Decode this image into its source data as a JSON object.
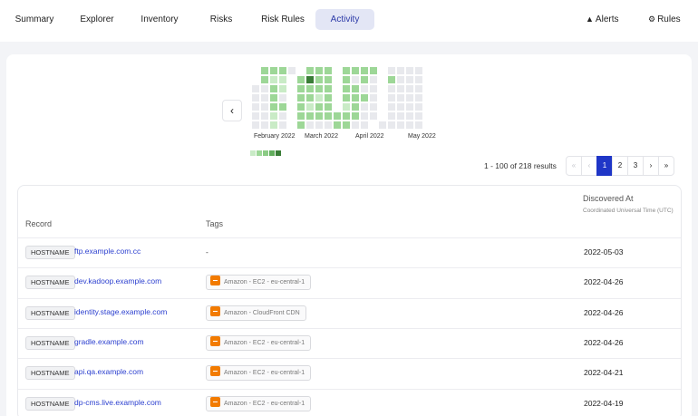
{
  "nav": {
    "tabs": [
      "Summary",
      "Explorer",
      "Inventory",
      "Risks",
      "Risk Rules",
      "Activity"
    ],
    "active_tab": "Activity",
    "alerts_label": "Alerts",
    "rules_label": "Rules"
  },
  "heatmap": {
    "months": [
      "February 2022",
      "March 2022",
      "April 2022",
      "May 2022"
    ],
    "levels": [
      "#e8e9ed",
      "#c9ebc6",
      "#9dd797",
      "#62ad5d",
      "#3a7d37"
    ],
    "legend_colors": [
      "#c9ebc6",
      "#9dd797",
      "#8bcb85",
      "#62ad5d",
      "#3a7d37"
    ],
    "prev_icon": "chevron-left-icon",
    "weeks": [
      [
        null,
        null,
        0,
        0,
        0,
        0,
        0
      ],
      [
        2,
        2,
        0,
        0,
        0,
        0,
        0
      ],
      [
        2,
        1,
        2,
        2,
        2,
        1,
        1
      ],
      [
        2,
        1,
        1,
        0,
        2,
        0,
        0
      ],
      [
        0,
        null,
        null,
        null,
        null,
        null,
        null
      ],
      [
        null,
        2,
        2,
        2,
        2,
        2,
        2
      ],
      [
        2,
        4,
        2,
        2,
        1,
        2,
        0
      ],
      [
        2,
        2,
        2,
        1,
        2,
        2,
        0
      ],
      [
        2,
        2,
        2,
        2,
        2,
        2,
        0
      ],
      [
        null,
        null,
        null,
        null,
        null,
        2,
        2
      ],
      [
        2,
        2,
        2,
        2,
        1,
        2,
        2
      ],
      [
        2,
        0,
        2,
        2,
        2,
        2,
        0
      ],
      [
        2,
        2,
        0,
        2,
        0,
        0,
        0
      ],
      [
        2,
        0,
        0,
        0,
        0,
        0,
        null
      ],
      [
        null,
        null,
        null,
        null,
        null,
        null,
        0
      ],
      [
        0,
        2,
        0,
        0,
        0,
        0,
        0
      ],
      [
        0,
        0,
        0,
        0,
        0,
        0,
        0
      ],
      [
        0,
        0,
        0,
        0,
        0,
        0,
        0
      ],
      [
        0,
        0,
        0,
        0,
        0,
        0,
        0
      ]
    ]
  },
  "pagination": {
    "summary": "1 - 100 of 218 results",
    "first": "«",
    "prev": "‹",
    "pages": [
      "1",
      "2",
      "3"
    ],
    "current": "1",
    "next": "›",
    "last": "»"
  },
  "table": {
    "col_record": "Record",
    "col_tags": "Tags",
    "col_discovered": "Discovered At",
    "col_discovered_sub": "Coordinated Universal Time (UTC)",
    "rows": [
      {
        "type": "HOSTNAME",
        "record": "ftp.example.com.cc",
        "tag": "-",
        "has_cloud": false,
        "date": "2022-05-03"
      },
      {
        "type": "HOSTNAME",
        "record": "dev.kadoop.example.com",
        "tag": "Amazon - EC2 - eu-central-1",
        "has_cloud": true,
        "date": "2022-04-26"
      },
      {
        "type": "HOSTNAME",
        "record": "identity.stage.example.com",
        "tag": "Amazon - CloudFront CDN",
        "has_cloud": true,
        "date": "2022-04-26"
      },
      {
        "type": "HOSTNAME",
        "record": "gradle.example.com",
        "tag": "Amazon - EC2 - eu-central-1",
        "has_cloud": true,
        "date": "2022-04-26"
      },
      {
        "type": "HOSTNAME",
        "record": "api.qa.example.com",
        "tag": "Amazon - EC2 - eu-central-1",
        "has_cloud": true,
        "date": "2022-04-21"
      },
      {
        "type": "HOSTNAME",
        "record": "dp-cms.live.example.com",
        "tag": "Amazon - EC2 - eu-central-1",
        "has_cloud": true,
        "date": "2022-04-19"
      }
    ]
  }
}
